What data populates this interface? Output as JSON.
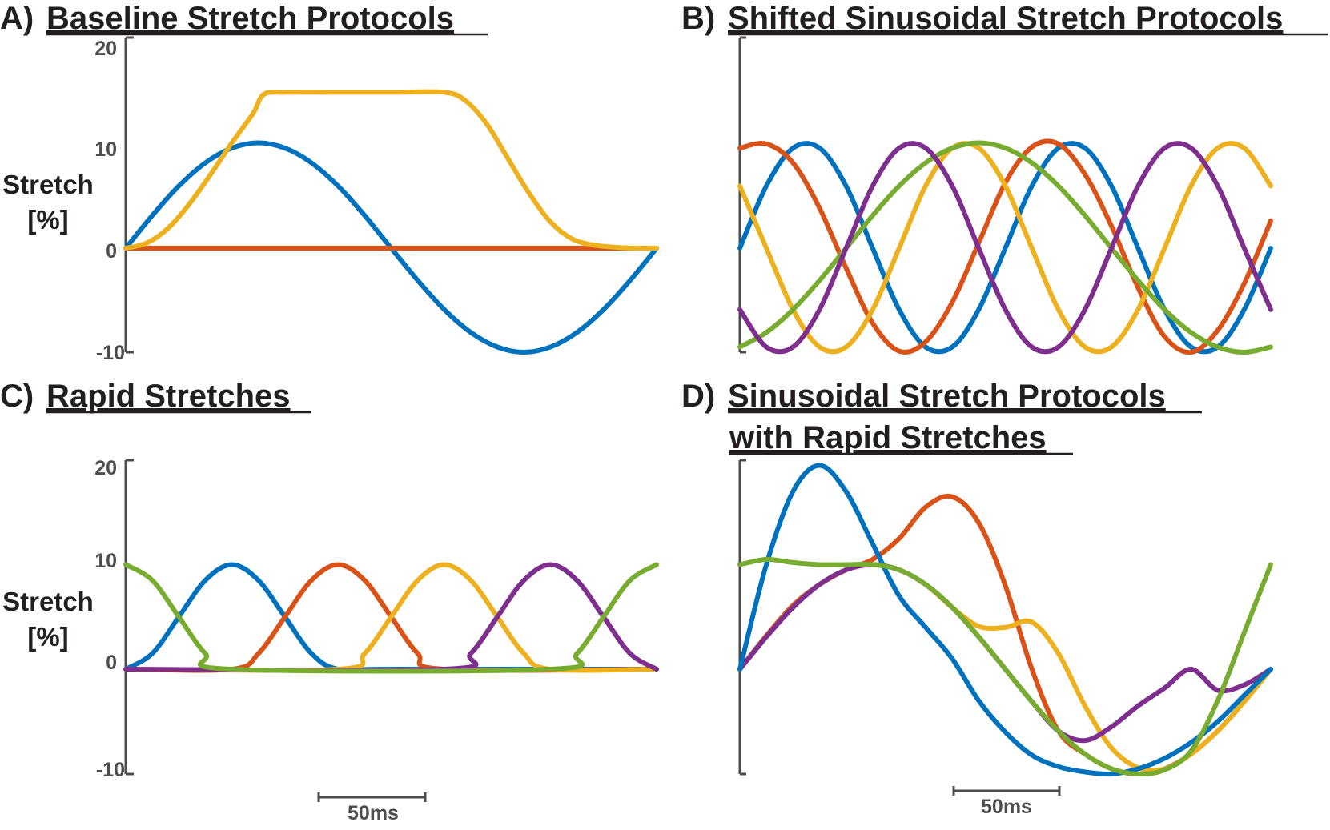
{
  "colors": {
    "blue": "#0072bd",
    "orange": "#d95319",
    "yellow": "#edb120",
    "purple": "#7e2f8e",
    "green": "#77ac30",
    "axis": "#4d4d4d",
    "title": "#231f20"
  },
  "chart_data": [
    {
      "panel": "A",
      "type": "line",
      "title_prefix": "A)",
      "title": "Baseline Stretch Protocols",
      "ylabel": [
        "Stretch",
        "[%]"
      ],
      "yticks": [
        20,
        10,
        0,
        -10
      ],
      "ylim": [
        -10,
        20
      ],
      "xlim": [
        0,
        250
      ],
      "x_unit": "ms",
      "series": [
        {
          "color": "blue",
          "x": [
            0,
            12.5,
            25,
            37.5,
            50,
            62.5,
            75,
            87.5,
            100,
            112.5,
            125,
            137.5,
            150,
            162.5,
            175,
            187.5,
            200,
            212.5,
            225,
            237.5,
            250
          ],
          "values": [
            0,
            3.1,
            5.9,
            8.1,
            9.5,
            10,
            9.5,
            8.1,
            5.9,
            3.1,
            0,
            -3.1,
            -5.9,
            -8.1,
            -9.5,
            -10,
            -9.5,
            -8.1,
            -5.9,
            -3.1,
            0
          ]
        },
        {
          "color": "orange",
          "x": [
            0,
            250
          ],
          "values": [
            0,
            0
          ]
        },
        {
          "color": "yellow",
          "x": [
            0,
            10,
            20,
            30,
            40,
            50,
            60,
            65,
            75,
            100,
            125,
            150,
            160,
            170,
            180,
            190,
            200,
            210,
            220,
            230,
            240,
            250
          ],
          "values": [
            0,
            0.5,
            1.9,
            4.2,
            7,
            10,
            12.8,
            14.6,
            14.8,
            14.8,
            14.8,
            14.8,
            14,
            11.8,
            8.5,
            5.2,
            2.5,
            0.9,
            0.3,
            0.1,
            0,
            0
          ]
        }
      ]
    },
    {
      "panel": "B",
      "type": "line",
      "title_prefix": "B)",
      "title": "Shifted Sinusoidal Stretch Protocols",
      "ylim": [
        -10,
        20
      ],
      "xlim": [
        0,
        250
      ],
      "x_unit": "ms",
      "series": [
        {
          "color": "blue",
          "x": [
            0,
            12.5,
            25,
            37.5,
            50,
            62.5,
            75,
            87.5,
            100,
            112.5,
            125,
            137.5,
            150,
            162.5,
            175,
            187.5,
            200,
            212.5,
            225,
            237.5,
            250
          ],
          "values": [
            0,
            5.9,
            9.5,
            9.5,
            5.9,
            0,
            -5.9,
            -9.5,
            -9.5,
            -5.9,
            0,
            5.9,
            9.5,
            9.5,
            5.9,
            0,
            -5.9,
            -9.5,
            -9.5,
            -5.9,
            0
          ]
        },
        {
          "color": "orange",
          "x": [
            0,
            12.5,
            25,
            37.5,
            50,
            62.5,
            75,
            87.5,
            100,
            112.5,
            125,
            137.5,
            150,
            162.5,
            175,
            187.5,
            200,
            212.5,
            225,
            237.5,
            250
          ],
          "values": [
            9.5,
            9.9,
            8.1,
            3.8,
            -1.9,
            -7.2,
            -9.9,
            -9.0,
            -5.2,
            0.5,
            6.2,
            9.6,
            9.9,
            7.0,
            2.1,
            -3.8,
            -8.5,
            -10.0,
            -7.9,
            -3.4,
            2.6
          ]
        },
        {
          "color": "yellow",
          "x": [
            0,
            12.5,
            25,
            37.5,
            50,
            62.5,
            75,
            87.5,
            100,
            112.5,
            125,
            137.5,
            150,
            162.5,
            175,
            187.5,
            200,
            212.5,
            225,
            237.5,
            250
          ],
          "values": [
            5.9,
            0,
            -5.9,
            -9.5,
            -9.5,
            -5.9,
            0,
            5.9,
            9.5,
            9.5,
            5.9,
            0,
            -5.9,
            -9.5,
            -9.5,
            -5.9,
            0,
            5.9,
            9.5,
            9.5,
            5.9
          ]
        },
        {
          "color": "green",
          "x": [
            0,
            12.5,
            25,
            37.5,
            50,
            62.5,
            75,
            87.5,
            100,
            112.5,
            125,
            137.5,
            150,
            162.5,
            175,
            187.5,
            200,
            212.5,
            225,
            237.5,
            250
          ],
          "values": [
            -9.5,
            -8.1,
            -5.9,
            -3.1,
            0,
            3.1,
            5.9,
            8.1,
            9.5,
            10,
            9.5,
            8.1,
            5.9,
            3.1,
            0,
            -3.1,
            -5.9,
            -8.1,
            -9.5,
            -10,
            -9.5
          ]
        },
        {
          "color": "purple",
          "x": [
            0,
            12.5,
            25,
            37.5,
            50,
            62.5,
            75,
            87.5,
            100,
            112.5,
            125,
            137.5,
            150,
            162.5,
            175,
            187.5,
            200,
            212.5,
            225,
            237.5,
            250
          ],
          "values": [
            -5.9,
            -9.5,
            -9.5,
            -5.9,
            0,
            5.9,
            9.5,
            9.5,
            5.9,
            0,
            -5.9,
            -9.5,
            -9.5,
            -5.9,
            0,
            5.9,
            9.5,
            9.5,
            5.9,
            0,
            -5.9
          ]
        }
      ]
    },
    {
      "panel": "C",
      "type": "line",
      "title_prefix": "C)",
      "title": "Rapid Stretches",
      "ylabel": [
        "Stretch",
        "[%]"
      ],
      "yticks": [
        20,
        10,
        0,
        -10
      ],
      "ylim": [
        -10,
        20
      ],
      "xlim": [
        0,
        250
      ],
      "x_unit": "ms",
      "scale_bar": "50ms",
      "series": [
        {
          "color": "blue",
          "x": [
            0,
            12.5,
            25,
            37.5,
            50,
            62.5,
            75,
            87.5,
            100,
            125,
            250
          ],
          "values": [
            0,
            1.5,
            5,
            8.5,
            10,
            8.5,
            5,
            1.5,
            0,
            0,
            0
          ]
        },
        {
          "color": "orange",
          "x": [
            0,
            50,
            62.5,
            75,
            87.5,
            100,
            112.5,
            125,
            137.5,
            150,
            250
          ],
          "values": [
            0,
            0,
            1.5,
            5,
            8.5,
            10,
            8.5,
            5,
            1.5,
            0,
            0
          ]
        },
        {
          "color": "yellow",
          "x": [
            0,
            100,
            112.5,
            125,
            137.5,
            150,
            162.5,
            175,
            187.5,
            200,
            250
          ],
          "values": [
            0,
            0,
            1.5,
            5,
            8.5,
            10,
            8.5,
            5,
            1.5,
            0,
            0
          ]
        },
        {
          "color": "purple",
          "x": [
            0,
            150,
            162.5,
            175,
            187.5,
            200,
            212.5,
            225,
            237.5,
            250
          ],
          "values": [
            0,
            0,
            1.5,
            5,
            8.5,
            10,
            8.5,
            5,
            1.5,
            0
          ]
        },
        {
          "color": "green",
          "x": [
            0,
            12.5,
            25,
            37.5,
            50,
            200,
            212.5,
            225,
            237.5,
            250
          ],
          "values": [
            10,
            8.5,
            5,
            1.5,
            0,
            0,
            1.5,
            5,
            8.5,
            10
          ]
        }
      ]
    },
    {
      "panel": "D",
      "type": "line",
      "title_prefix": "D)",
      "title": [
        "Sinusoidal Stretch Protocols",
        "with Rapid Stretches"
      ],
      "ylim": [
        -10,
        20
      ],
      "xlim": [
        0,
        250
      ],
      "x_unit": "ms",
      "scale_bar": "50ms",
      "series": [
        {
          "color": "orange",
          "x": [
            0,
            12.5,
            25,
            37.5,
            50,
            62.5,
            75,
            87.5,
            100,
            112.5,
            125,
            137.5,
            150,
            162.5,
            175,
            187.5,
            200,
            212.5,
            225,
            237.5,
            250
          ],
          "values": [
            0,
            3.2,
            6.1,
            8.1,
            9.5,
            10.5,
            12.5,
            15.5,
            16.5,
            14,
            8,
            0,
            -5.9,
            -8.1,
            -9.5,
            -10,
            -9.5,
            -8.1,
            -5.9,
            -3.1,
            0
          ]
        },
        {
          "color": "yellow",
          "x": [
            0,
            12.5,
            25,
            37.5,
            50,
            62.5,
            75,
            87.5,
            100,
            112.5,
            125,
            137.5,
            150,
            162.5,
            175,
            187.5,
            200,
            212.5,
            225,
            237.5,
            250
          ],
          "values": [
            0,
            3.1,
            5.9,
            8.1,
            9.5,
            10,
            9.5,
            8.1,
            5.9,
            4.1,
            4,
            4.5,
            1.5,
            -3.5,
            -7.5,
            -9.4,
            -9.5,
            -8.1,
            -5.9,
            -3.1,
            0
          ]
        },
        {
          "color": "purple",
          "x": [
            0,
            12.5,
            25,
            37.5,
            50,
            62.5,
            75,
            87.5,
            100,
            112.5,
            125,
            137.5,
            150,
            162.5,
            175,
            187.5,
            200,
            212.5,
            225,
            237.5,
            250
          ],
          "values": [
            0,
            3.1,
            5.9,
            8.1,
            9.5,
            10,
            9.5,
            8.1,
            5.9,
            3.1,
            0,
            -3.1,
            -5.9,
            -6.8,
            -5.5,
            -3.5,
            -1.8,
            0,
            -2,
            -1.5,
            0
          ]
        },
        {
          "color": "blue",
          "x": [
            0,
            12.5,
            25,
            37.5,
            50,
            62.5,
            75,
            87.5,
            100,
            112.5,
            125,
            137.5,
            150,
            162.5,
            175,
            187.5,
            200,
            212.5,
            225,
            237.5,
            250
          ],
          "values": [
            0,
            10,
            17,
            19.5,
            17,
            12,
            7,
            4,
            1,
            -3,
            -6,
            -8.2,
            -9.3,
            -9.8,
            -10,
            -9.5,
            -8.5,
            -7,
            -5,
            -2.5,
            0
          ]
        },
        {
          "color": "green",
          "x": [
            0,
            12.5,
            25,
            37.5,
            50,
            62.5,
            75,
            87.5,
            100,
            112.5,
            125,
            137.5,
            150,
            162.5,
            175,
            187.5,
            200,
            212.5,
            225,
            237.5,
            250
          ],
          "values": [
            10,
            10.5,
            10.2,
            10,
            10,
            10,
            9.5,
            8.1,
            5.9,
            3.1,
            0,
            -3.1,
            -5.9,
            -8.1,
            -9.5,
            -10,
            -9.6,
            -7.8,
            -3,
            3.5,
            10
          ]
        }
      ]
    }
  ]
}
